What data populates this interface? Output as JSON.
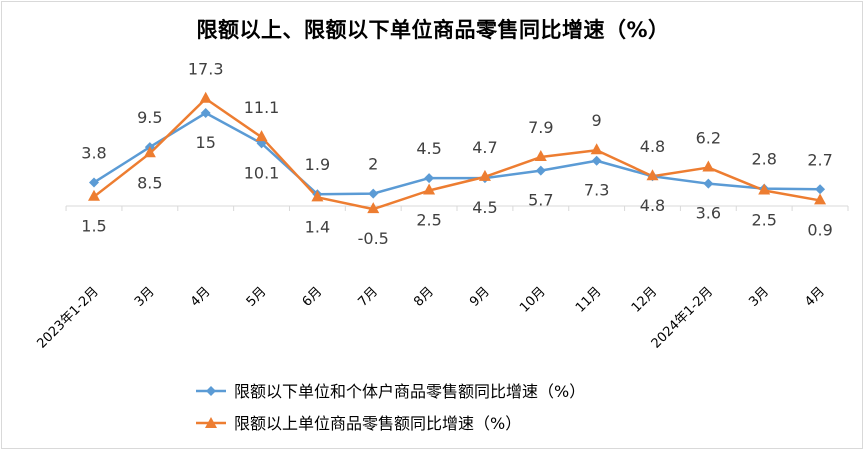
{
  "chart_data": {
    "type": "line",
    "title": "限额以上、限额以下单位商品零售同比增速（%）",
    "categories": [
      "2023年1-2月",
      "3月",
      "4月",
      "5月",
      "6月",
      "7月",
      "8月",
      "9月",
      "10月",
      "11月",
      "12月",
      "2024年1-2月",
      "3月",
      "4月"
    ],
    "series": [
      {
        "name": "限额以下单位和个体户商品零售额同比增速（%）",
        "color": "#5b9bd5",
        "marker": "diamond",
        "values": [
          3.8,
          9.5,
          15,
          10.1,
          1.9,
          2,
          4.5,
          4.5,
          5.7,
          7.3,
          4.8,
          3.6,
          2.8,
          2.7
        ],
        "label_positions": [
          "above",
          "above",
          "below",
          "below",
          "above",
          "above",
          "above",
          "below",
          "below",
          "below",
          "below",
          "below",
          "above",
          "above"
        ]
      },
      {
        "name": "限额以上单位商品零售额同比增速（%）",
        "color": "#ed7d31",
        "marker": "triangle",
        "values": [
          1.5,
          8.5,
          17.3,
          11.1,
          1.4,
          -0.5,
          2.5,
          4.7,
          7.9,
          9,
          4.8,
          6.2,
          2.5,
          0.9
        ],
        "label_positions": [
          "below",
          "below",
          "above",
          "above",
          "below",
          "below",
          "below",
          "above",
          "above",
          "above",
          "above",
          "above",
          "below",
          "below"
        ]
      }
    ],
    "ylim": [
      -1,
      20
    ],
    "grid": false,
    "legend_position": "bottom"
  }
}
